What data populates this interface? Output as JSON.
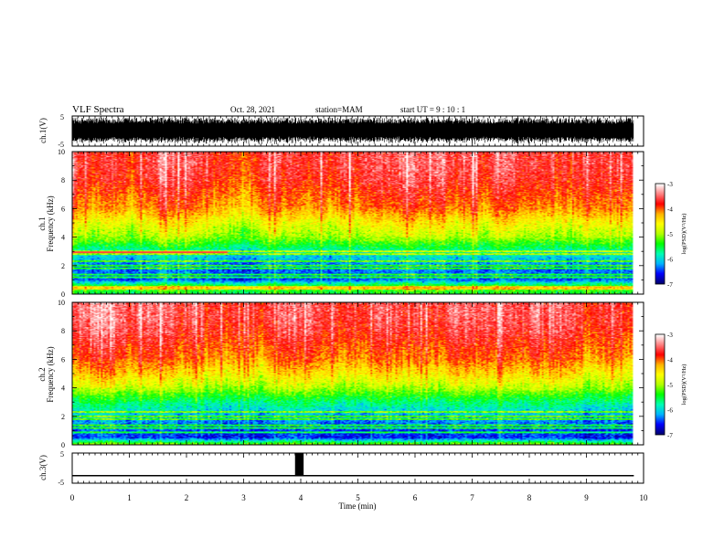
{
  "header": {
    "title": "VLF Spectra",
    "date": "Oct. 28, 2021",
    "station": "station=MAM",
    "start_ut": "start UT =  9 : 10 : 1"
  },
  "colors": {
    "colormap": [
      "#000070",
      "#0000ff",
      "#00b4ff",
      "#00ffb4",
      "#00ff00",
      "#b4ff00",
      "#ffff00",
      "#ffb400",
      "#ff0000",
      "#ff8080",
      "#ffffff"
    ],
    "waveform": "#000000",
    "background": "#ffffff"
  },
  "chart_data": [
    {
      "type": "line",
      "id": "ch1-waveform",
      "ylabel": "ch.1(V)",
      "ylim": [
        -5,
        5
      ],
      "ytick_labels": [
        "5",
        "-5"
      ],
      "xlim": [
        0,
        10
      ],
      "description_of_signal": "dense noise-like waveform spanning most of range",
      "amplitude_approx": 4.5
    },
    {
      "type": "heatmap",
      "id": "ch1-spectrogram",
      "ylabel": "ch.1",
      "ylabel2": "Frequency (kHz)",
      "ylim": [
        0,
        10
      ],
      "ytick_labels": [
        "0",
        "2",
        "4",
        "6",
        "8",
        "10"
      ],
      "xlim": [
        0,
        10
      ],
      "data_end_min": 9.83,
      "color_range": [
        -7,
        -3
      ],
      "colorbar_label": "log(PSD)(V²/Hz)",
      "colorbar_ticks": [
        "-3",
        "-4",
        "-5",
        "-6",
        "-7"
      ],
      "profile_freq_khz": [
        0,
        0.5,
        1,
        2,
        3,
        4,
        5,
        6,
        7,
        8,
        9,
        10
      ],
      "profile_logpsd": [
        -5.5,
        -5.2,
        -6.4,
        -6.3,
        -5.8,
        -5.0,
        -4.6,
        -4.1,
        -3.9,
        -3.7,
        -3.6,
        -3.6
      ],
      "tonal_lines_khz": [
        0.4,
        0.5,
        1.2,
        1.4,
        1.8,
        2.0,
        2.3,
        2.8,
        3.0
      ],
      "tone_segment": {
        "freq_khz": 2.95,
        "t_start": 0,
        "t_end": 2.7
      }
    },
    {
      "type": "heatmap",
      "id": "ch2-spectrogram",
      "ylabel": "ch.2",
      "ylabel2": "Frequency (kHz)",
      "ylim": [
        0,
        10
      ],
      "ytick_labels": [
        "0",
        "2",
        "4",
        "6",
        "8",
        "10"
      ],
      "xlim": [
        0,
        10
      ],
      "data_end_min": 9.83,
      "color_range": [
        -7,
        -3
      ],
      "colorbar_label": "log(PSD)(V²/Hz)",
      "colorbar_ticks": [
        "-3",
        "-4",
        "-5",
        "-6",
        "-7"
      ],
      "profile_freq_khz": [
        0,
        0.5,
        1,
        2,
        3,
        4,
        5,
        6,
        7,
        8,
        9,
        10
      ],
      "profile_logpsd": [
        -5.0,
        -6.6,
        -6.5,
        -6.2,
        -5.7,
        -5.0,
        -4.5,
        -4.1,
        -3.9,
        -3.7,
        -3.6,
        -3.6
      ],
      "tonal_lines_khz": [
        0.9,
        1.2,
        1.4,
        1.8,
        2.0,
        2.3
      ]
    },
    {
      "type": "line",
      "id": "ch3-signal",
      "ylabel": "ch.3(V)",
      "ylim": [
        -5,
        5
      ],
      "ytick_labels": [
        "5",
        "-5"
      ],
      "xlim": [
        0,
        10
      ],
      "xlabel": "Time (min)",
      "xtick_labels": [
        "0",
        "1",
        "2",
        "3",
        "4",
        "5",
        "6",
        "7",
        "8",
        "9",
        "10"
      ],
      "baseline_v": -2.5,
      "pulse": {
        "t_start": 3.9,
        "t_end": 4.05,
        "top_v": 5
      }
    }
  ]
}
